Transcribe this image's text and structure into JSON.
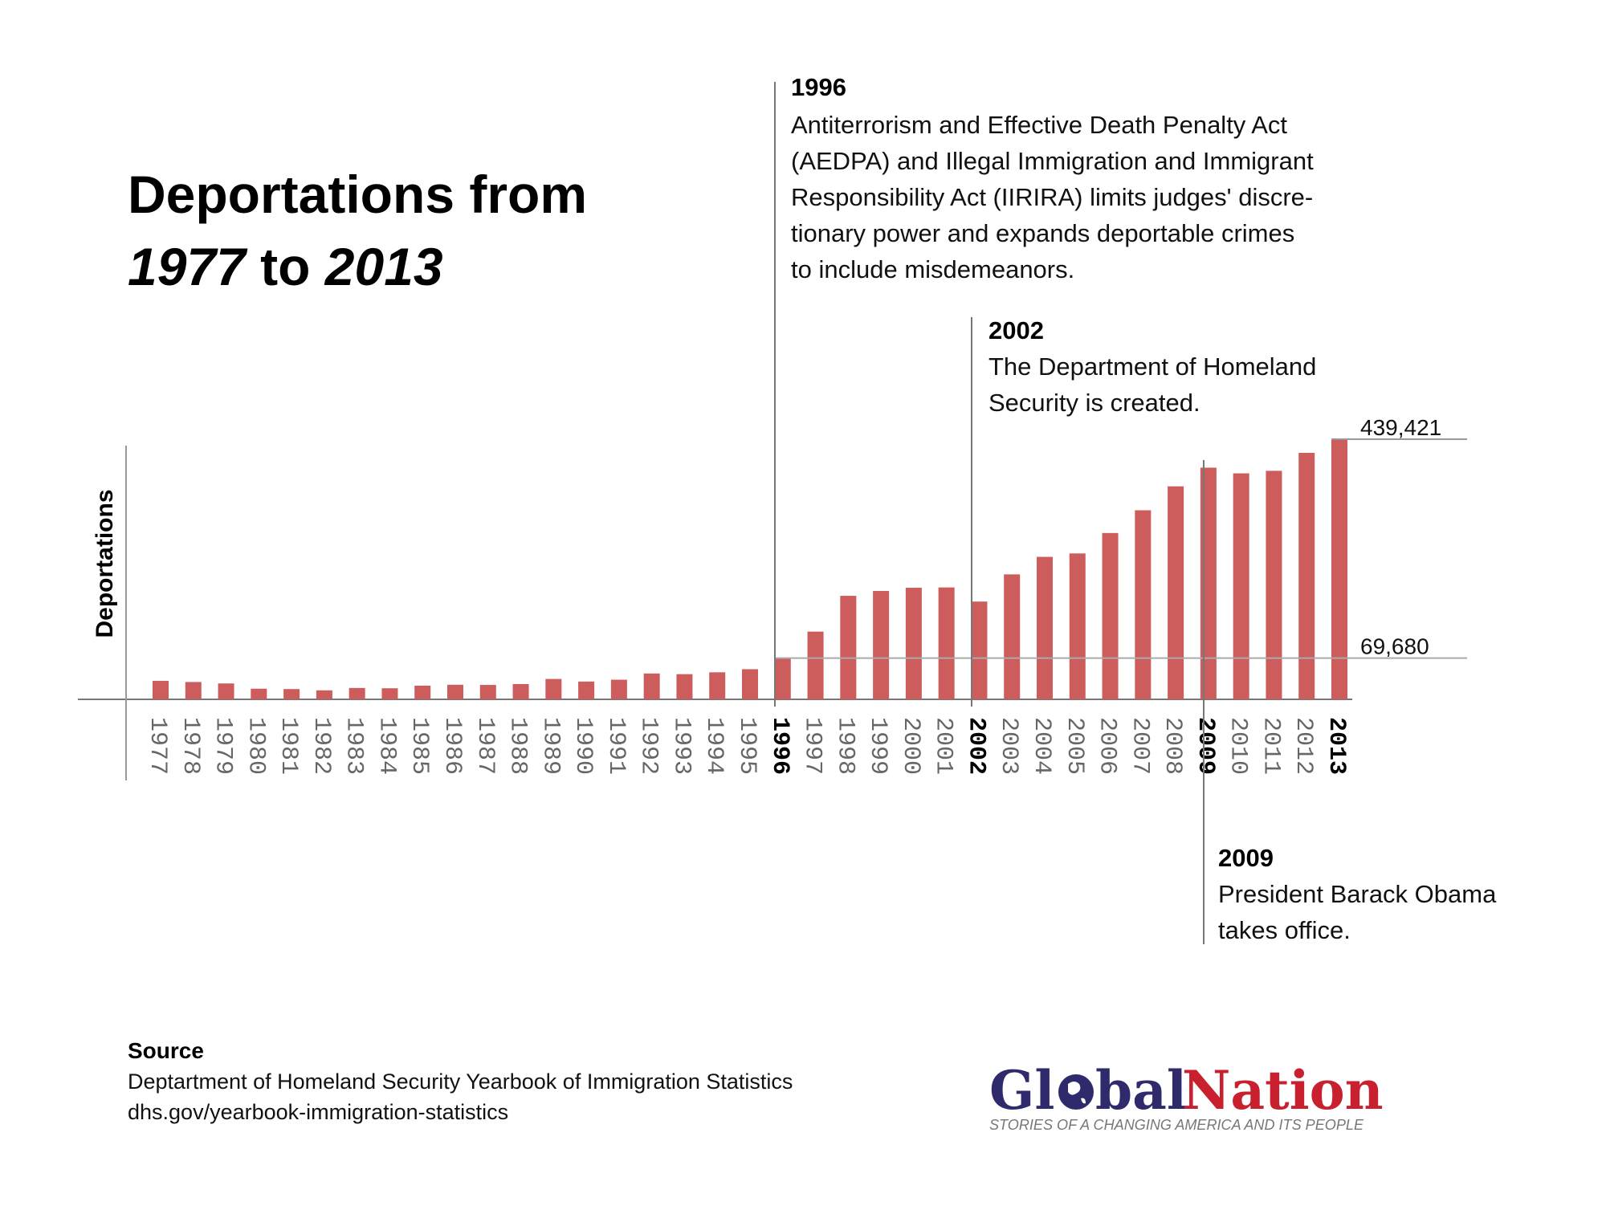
{
  "title": {
    "line1": "Deportations from",
    "year_start": "1977",
    "to": " to ",
    "year_end": "2013"
  },
  "chart_data": {
    "type": "bar",
    "title": "Deportations from 1977 to 2013",
    "xlabel": "",
    "ylabel": "Deportations",
    "categories": [
      "1977",
      "1978",
      "1979",
      "1980",
      "1981",
      "1982",
      "1983",
      "1984",
      "1985",
      "1986",
      "1987",
      "1988",
      "1989",
      "1990",
      "1991",
      "1992",
      "1993",
      "1994",
      "1995",
      "1996",
      "1997",
      "1998",
      "1999",
      "2000",
      "2001",
      "2002",
      "2003",
      "2004",
      "2005",
      "2006",
      "2007",
      "2008",
      "2009",
      "2010",
      "2011",
      "2012",
      "2013"
    ],
    "values": [
      31263,
      29277,
      26825,
      18013,
      17379,
      15216,
      19211,
      18696,
      23105,
      24592,
      24336,
      25829,
      34427,
      30039,
      33189,
      43671,
      42542,
      45674,
      50924,
      69680,
      114432,
      174813,
      183114,
      188467,
      189026,
      165168,
      211098,
      240665,
      246431,
      280974,
      319382,
      359795,
      391341,
      381738,
      386020,
      416324,
      439421
    ],
    "ylim": [
      0,
      439421
    ],
    "highlighted_years": [
      "1996",
      "2002",
      "2009",
      "2013"
    ],
    "reference_lines": [
      {
        "value": 439421,
        "label": "439,421"
      },
      {
        "value": 69680,
        "label": "69,680"
      }
    ],
    "bar_color": "#cd5c5c",
    "grid": false,
    "legend": "none",
    "annotations": [
      {
        "year": "1996",
        "heading": "1996",
        "lines": [
          "Antiterrorism and Effective Death Penalty Act",
          "(AEDPA) and Illegal Immigration and Immigrant",
          "Responsibility Act (IIRIRA) limits judges' discre-",
          "tionary power and expands deportable crimes",
          "to include misdemeanors."
        ]
      },
      {
        "year": "2002",
        "heading": "2002",
        "lines": [
          "The Department of Homeland",
          "Security is created."
        ]
      },
      {
        "year": "2009",
        "heading": "2009",
        "lines": [
          "President Barack Obama",
          "takes office."
        ]
      }
    ]
  },
  "source": {
    "heading": "Source",
    "line1": "Deptartment of Homeland Security Yearbook of Immigration Statistics",
    "line2": "dhs.gov/yearbook-immigration-statistics"
  },
  "logo": {
    "part1": "Gl",
    "part1b": "bal",
    "part2": "Nation",
    "tagline": "STORIES OF A CHANGING AMERICA AND ITS PEOPLE",
    "color_primary": "#2e2a6b",
    "color_accent": "#c8202f"
  }
}
